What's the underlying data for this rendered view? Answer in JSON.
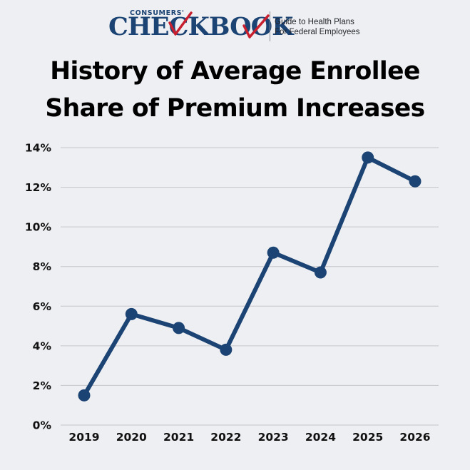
{
  "brand": {
    "super": "CONSUMERS'",
    "name": "CHECKBOOK",
    "tagline_line1": "Guide to Health Plans",
    "tagline_line2": "For Federal Employees",
    "primary_color": "#1b4373",
    "check_color": "#c8202f"
  },
  "chart_data": {
    "type": "line",
    "title": "History of Average Enrollee Share of Premium Increases",
    "title_line1": "History of Average Enrollee",
    "title_line2": "Share of Premium Increases",
    "xlabel": "",
    "ylabel": "",
    "categories": [
      "2019",
      "2020",
      "2021",
      "2022",
      "2023",
      "2024",
      "2025",
      "2026"
    ],
    "series": [
      {
        "values": [
          1.5,
          5.6,
          4.9,
          3.8,
          8.7,
          7.7,
          13.5,
          12.3
        ],
        "color": "#1b4373"
      }
    ],
    "ylim": [
      0,
      14
    ],
    "yticks": [
      0,
      2,
      4,
      6,
      8,
      10,
      12,
      14
    ],
    "ytick_labels": [
      "0%",
      "2%",
      "4%",
      "6%",
      "8%",
      "10%",
      "12%",
      "14%"
    ],
    "grid": true,
    "legend": "none",
    "gridline_color": "#c4c6ca",
    "line_color": "#1b4373"
  }
}
